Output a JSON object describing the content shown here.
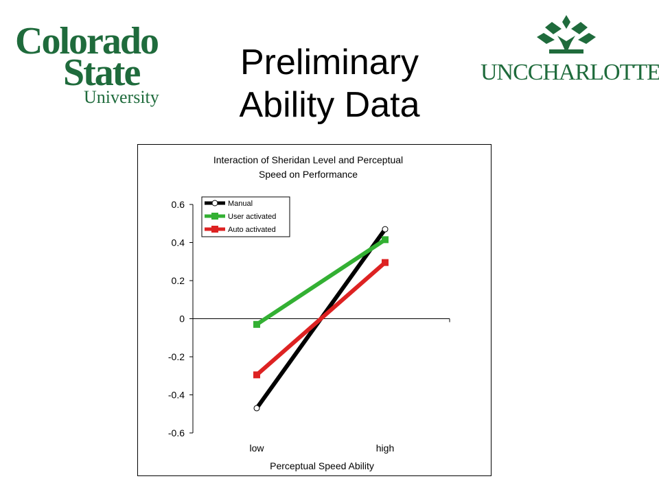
{
  "slide": {
    "title_line1": "Preliminary",
    "title_line2": "Ability Data"
  },
  "logos": {
    "left": {
      "line1": "Colorado",
      "line2": "State",
      "line3": "University",
      "color": "#1f6b3c"
    },
    "right": {
      "text": "UNCCHARLOTTE",
      "color": "#1f6b3c",
      "icon": "crown-leaves-icon"
    }
  },
  "chart_data": {
    "type": "line",
    "title_line1": "Interaction of Sheridan Level and Perceptual",
    "title_line2": "Speed on Performance",
    "xlabel": "Perceptual Speed Ability",
    "ylabel": "",
    "categories": [
      "low",
      "high"
    ],
    "ylim": [
      -0.6,
      0.6
    ],
    "yticks": [
      0.6,
      0.4,
      0.2,
      0,
      -0.2,
      -0.4,
      -0.6
    ],
    "ytick_labels": [
      "0.6",
      "0.4",
      "0.2",
      "0",
      "-0.2",
      "-0.4",
      "-0.6"
    ],
    "grid": false,
    "legend_position": "top-left",
    "series": [
      {
        "name": "Manual",
        "values": [
          -0.47,
          0.47
        ],
        "color": "#000000",
        "marker": "circle"
      },
      {
        "name": "User activated",
        "values": [
          -0.03,
          0.415
        ],
        "color": "#33b033",
        "marker": "square"
      },
      {
        "name": "Auto activated",
        "values": [
          -0.295,
          0.295
        ],
        "color": "#dd2222",
        "marker": "square"
      }
    ]
  }
}
